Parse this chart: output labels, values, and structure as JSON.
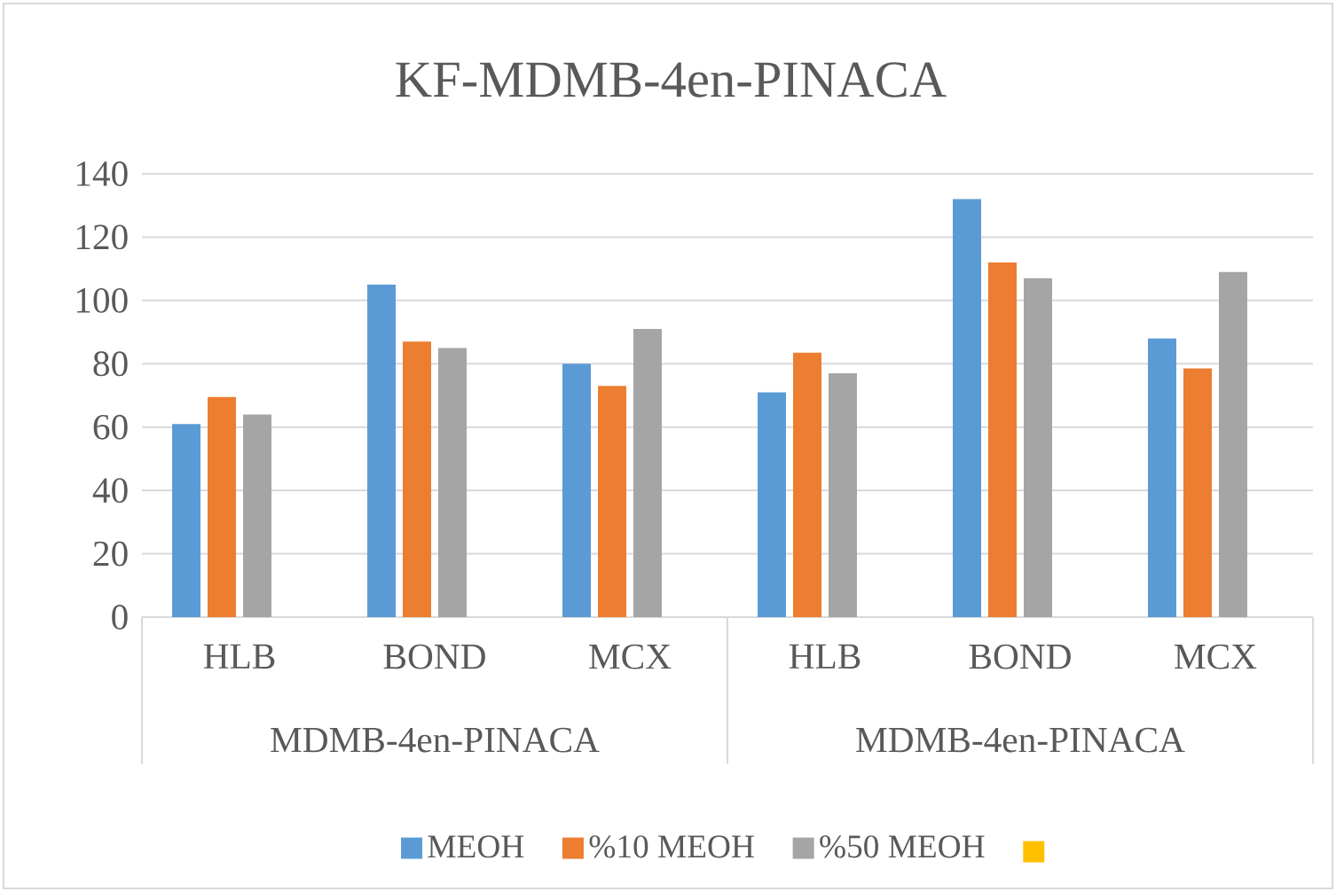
{
  "chart_data": {
    "type": "bar",
    "title": "KF-MDMB-4en-PINACA",
    "categories": [
      "HLB",
      "BOND",
      "MCX",
      "HLB",
      "BOND",
      "MCX"
    ],
    "annotations": [
      "MDMB-4en-PINACA",
      "MDMB-4en-PINACA"
    ],
    "series": [
      {
        "name": "MEOH",
        "color": "#5b9bd5",
        "values": [
          61,
          105,
          80,
          71,
          132,
          88
        ]
      },
      {
        "name": "%10 MEOH",
        "color": "#ed7d31",
        "values": [
          69.5,
          87,
          73,
          83.5,
          112,
          78.5
        ]
      },
      {
        "name": "%50 MEOH",
        "color": "#a5a5a5",
        "values": [
          64,
          85,
          91,
          77,
          107,
          109
        ]
      },
      {
        "color": "#ffc000",
        "values": [
          null,
          null,
          null,
          null,
          null,
          null
        ]
      }
    ],
    "ylim": [
      0,
      140
    ],
    "yticks": [
      0,
      20,
      40,
      60,
      80,
      100,
      120,
      140
    ],
    "grid": "y",
    "legend": "bottom"
  }
}
